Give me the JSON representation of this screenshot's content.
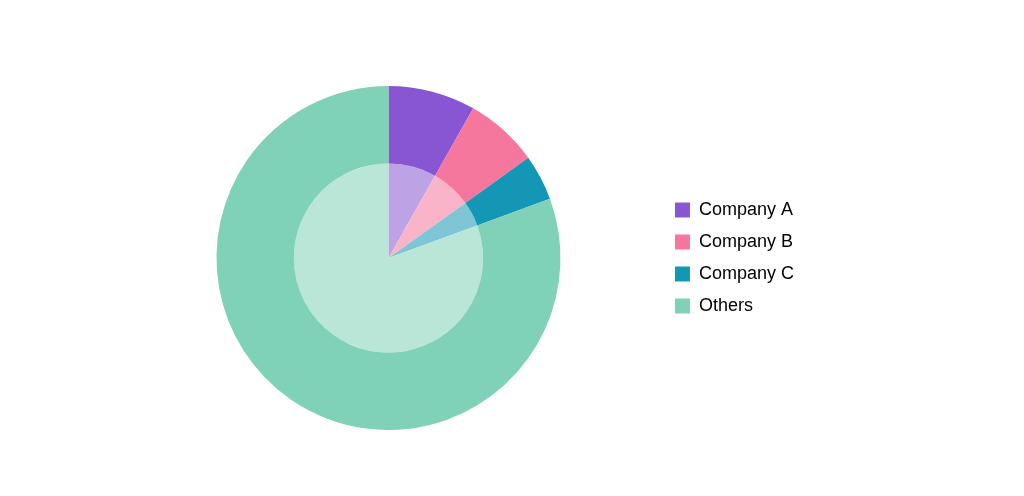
{
  "chart_data": {
    "type": "pie",
    "categories": [
      "Company A",
      "Company B",
      "Company C",
      "Others"
    ],
    "values": [
      8.2,
      6.9,
      4.3,
      80.6
    ],
    "colors": [
      "#8856d2",
      "#f5779e",
      "#1497b5",
      "#7fd1b7"
    ],
    "legend": "right"
  }
}
